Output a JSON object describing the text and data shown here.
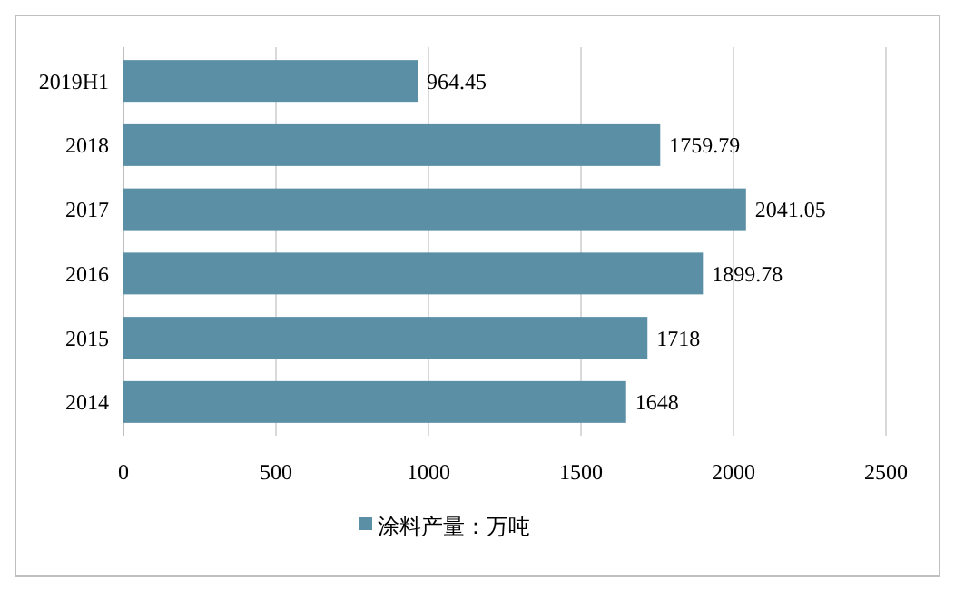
{
  "chart_data": {
    "type": "bar",
    "orientation": "horizontal",
    "categories": [
      "2019H1",
      "2018",
      "2017",
      "2016",
      "2015",
      "2014"
    ],
    "series": [
      {
        "name": "涂料产量：万吨",
        "color": "#5b8fa6",
        "values": [
          964.45,
          1759.79,
          2041.05,
          1899.78,
          1718,
          1648
        ]
      }
    ],
    "xlim": [
      0,
      2500
    ],
    "xticks": [
      0,
      500,
      1000,
      1500,
      2000,
      2500
    ],
    "grid": "x",
    "legend": "bottom",
    "data_labels": true
  }
}
